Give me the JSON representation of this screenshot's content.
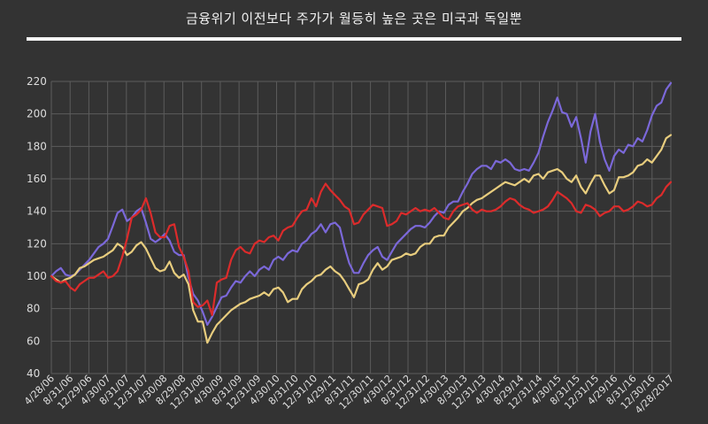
{
  "title": "금융위기 이전보다 주가가 월등히 높은 곳은 미국과 독일뿐",
  "colors": {
    "background": "#333333",
    "grid": "#5c5c5c",
    "title_rule": "#f4f4f4"
  },
  "chart_data": {
    "type": "line",
    "title": "금융위기 이전보다 주가가 월등히 높은 곳은 미국과 독일뿐",
    "xlabel": "",
    "ylabel": "",
    "ylim": [
      40,
      220
    ],
    "yticks": [
      40,
      60,
      80,
      100,
      120,
      140,
      160,
      180,
      200,
      220
    ],
    "grid": true,
    "legend": "none",
    "x_tick_labels": [
      "4/28/06",
      "8/31/06",
      "12/29/06",
      "4/30/07",
      "8/31/07",
      "12/31/07",
      "4/30/08",
      "8/29/08",
      "12/31/08",
      "4/30/09",
      "8/31/09",
      "12/31/09",
      "4/30/10",
      "8/31/10",
      "12/31/10",
      "4/29/11",
      "8/31/11",
      "12/30/11",
      "4/30/12",
      "8/31/12",
      "12/31/12",
      "4/30/13",
      "8/30/13",
      "12/31/13",
      "4/30/14",
      "8/29/14",
      "12/31/14",
      "4/30/15",
      "8/31/15",
      "12/31/15",
      "4/29/16",
      "8/31/16",
      "12/30/16",
      "4/28/2017"
    ],
    "series": [
      {
        "color": "#7b68d9",
        "values": [
          100,
          103,
          105,
          101,
          100,
          101,
          104,
          107,
          110,
          114,
          118,
          120,
          123,
          131,
          139,
          141,
          134,
          136,
          140,
          142,
          133,
          123,
          121,
          123,
          126,
          122,
          115,
          113,
          113,
          99,
          89,
          85,
          78,
          70,
          75,
          81,
          87,
          88,
          93,
          97,
          96,
          100,
          103,
          100,
          104,
          106,
          104,
          110,
          112,
          110,
          114,
          116,
          115,
          120,
          122,
          126,
          128,
          132,
          127,
          132,
          133,
          130,
          118,
          108,
          102,
          102,
          108,
          113,
          116,
          118,
          112,
          110,
          115,
          120,
          123,
          126,
          129,
          131,
          131,
          130,
          133,
          137,
          140,
          139,
          144,
          146,
          146,
          152,
          157,
          163,
          166,
          168,
          168,
          166,
          171,
          170,
          172,
          170,
          166,
          165,
          166,
          165,
          170,
          176,
          186,
          195,
          202,
          210,
          201,
          200,
          192,
          198,
          185,
          170,
          189,
          200,
          183,
          172,
          165,
          174,
          178,
          176,
          181,
          180,
          185,
          183,
          190,
          199,
          205,
          207,
          215,
          219
        ]
      },
      {
        "color": "#e8cd7e",
        "values": [
          100,
          98,
          96,
          98,
          99,
          101,
          105,
          106,
          108,
          110,
          111,
          112,
          114,
          116,
          120,
          118,
          113,
          115,
          119,
          121,
          117,
          111,
          105,
          103,
          104,
          109,
          102,
          99,
          101,
          95,
          79,
          72,
          72,
          59,
          65,
          70,
          73,
          76,
          79,
          81,
          83,
          84,
          86,
          87,
          88,
          90,
          88,
          92,
          93,
          90,
          84,
          86,
          86,
          92,
          95,
          97,
          100,
          101,
          104,
          106,
          103,
          101,
          97,
          92,
          87,
          95,
          96,
          98,
          104,
          108,
          104,
          106,
          110,
          111,
          112,
          114,
          113,
          114,
          118,
          120,
          120,
          124,
          125,
          125,
          130,
          133,
          136,
          140,
          142,
          145,
          147,
          148,
          150,
          152,
          154,
          156,
          158,
          157,
          156,
          158,
          160,
          158,
          162,
          163,
          160,
          164,
          165,
          166,
          164,
          160,
          158,
          162,
          155,
          151,
          157,
          162,
          162,
          156,
          151,
          153,
          161,
          161,
          162,
          164,
          168,
          169,
          172,
          170,
          174,
          178,
          185,
          187
        ]
      },
      {
        "color": "#dc2b2b",
        "values": [
          100,
          97,
          96,
          97,
          93,
          91,
          95,
          97,
          99,
          99,
          101,
          103,
          99,
          100,
          103,
          112,
          123,
          136,
          138,
          141,
          148,
          139,
          127,
          124,
          124,
          131,
          132,
          118,
          112,
          103,
          84,
          81,
          82,
          85,
          76,
          96,
          98,
          99,
          110,
          116,
          118,
          115,
          114,
          120,
          122,
          121,
          124,
          125,
          122,
          128,
          130,
          131,
          136,
          140,
          141,
          148,
          143,
          152,
          157,
          153,
          150,
          147,
          143,
          141,
          132,
          133,
          138,
          141,
          144,
          143,
          142,
          131,
          132,
          134,
          139,
          138,
          140,
          142,
          140,
          141,
          140,
          142,
          139,
          136,
          135,
          140,
          143,
          144,
          145,
          141,
          139,
          141,
          140,
          140,
          141,
          143,
          146,
          148,
          147,
          144,
          142,
          141,
          139,
          140,
          141,
          143,
          147,
          152,
          150,
          148,
          145,
          140,
          139,
          144,
          143,
          141,
          137,
          139,
          140,
          143,
          143,
          140,
          141,
          143,
          146,
          145,
          143,
          144,
          148,
          150,
          155,
          158
        ]
      }
    ]
  }
}
